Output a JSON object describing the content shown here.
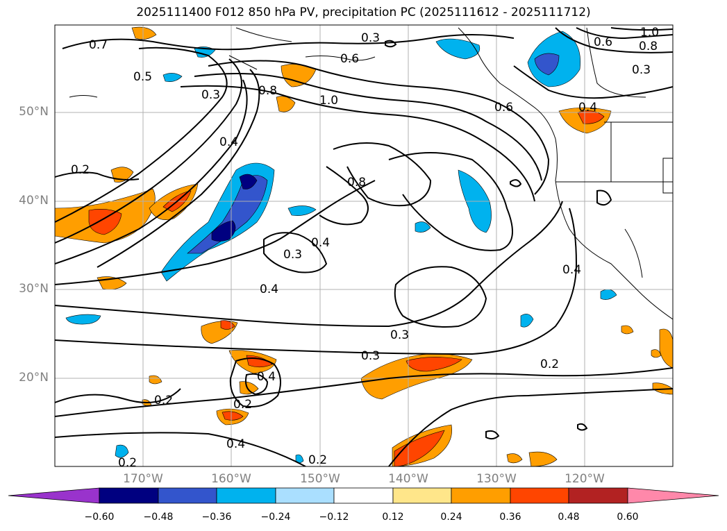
{
  "title": "2025111400 F012 850 hPa PV, precipitation PC (2025111612 - 2025111712)",
  "lat_labels": [
    "50°N",
    "40°N",
    "30°N",
    "20°N"
  ],
  "lon_labels": [
    "170°W",
    "160°W",
    "150°W",
    "140°W",
    "130°W",
    "120°W"
  ],
  "colorbar": {
    "ticks": [
      "−0.60",
      "−0.48",
      "−0.36",
      "−0.24",
      "−0.12",
      "0.12",
      "0.24",
      "0.36",
      "0.48",
      "0.60"
    ],
    "colors": [
      "#9933cc",
      "#000080",
      "#3355cc",
      "#00b2ee",
      "#aadfff",
      "#ffffff",
      "#ffe68a",
      "#ff9e00",
      "#ff4500",
      "#b22222",
      "#ff88aa"
    ]
  },
  "map": {
    "lat_range": [
      10,
      60
    ],
    "lon_range": [
      -180,
      -110
    ],
    "contour_labels": [
      "0.7",
      "0.5",
      "0.6",
      "0.3",
      "0.8",
      "1.0",
      "0.4",
      "0.2",
      "0.3",
      "0.4",
      "0.6",
      "0.4",
      "0.2",
      "0.3",
      "0.4",
      "0.8",
      "0.4",
      "0.3",
      "0.4",
      "0.2",
      "0.4",
      "0.3",
      "0.2",
      "0.2",
      "0.2",
      "0.6",
      "0.8",
      "0.3",
      "1.0"
    ]
  }
}
